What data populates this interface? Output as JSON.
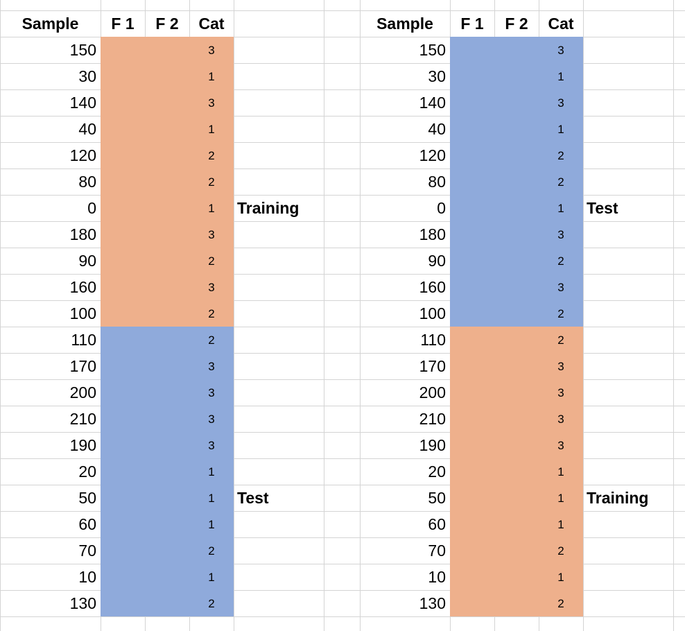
{
  "colors": {
    "training": "#eeb08c",
    "test": "#8faadb",
    "gridline": "#d4d4d4"
  },
  "headers": {
    "sample": "Sample",
    "f1": "F 1",
    "f2": "F 2",
    "cat": "Cat"
  },
  "tables": [
    {
      "first_group": {
        "label": "Training",
        "color": "training"
      },
      "second_group": {
        "label": "Test",
        "color": "test"
      },
      "rows": [
        {
          "sample": "150",
          "cat": "3"
        },
        {
          "sample": "30",
          "cat": "1"
        },
        {
          "sample": "140",
          "cat": "3"
        },
        {
          "sample": "40",
          "cat": "1"
        },
        {
          "sample": "120",
          "cat": "2"
        },
        {
          "sample": "80",
          "cat": "2"
        },
        {
          "sample": "0",
          "cat": "1"
        },
        {
          "sample": "180",
          "cat": "3"
        },
        {
          "sample": "90",
          "cat": "2"
        },
        {
          "sample": "160",
          "cat": "3"
        },
        {
          "sample": "100",
          "cat": "2"
        },
        {
          "sample": "110",
          "cat": "2"
        },
        {
          "sample": "170",
          "cat": "3"
        },
        {
          "sample": "200",
          "cat": "3"
        },
        {
          "sample": "210",
          "cat": "3"
        },
        {
          "sample": "190",
          "cat": "3"
        },
        {
          "sample": "20",
          "cat": "1"
        },
        {
          "sample": "50",
          "cat": "1"
        },
        {
          "sample": "60",
          "cat": "1"
        },
        {
          "sample": "70",
          "cat": "2"
        },
        {
          "sample": "10",
          "cat": "1"
        },
        {
          "sample": "130",
          "cat": "2"
        }
      ]
    },
    {
      "first_group": {
        "label": "Test",
        "color": "test"
      },
      "second_group": {
        "label": "Training",
        "color": "training"
      },
      "rows": [
        {
          "sample": "150",
          "cat": "3"
        },
        {
          "sample": "30",
          "cat": "1"
        },
        {
          "sample": "140",
          "cat": "3"
        },
        {
          "sample": "40",
          "cat": "1"
        },
        {
          "sample": "120",
          "cat": "2"
        },
        {
          "sample": "80",
          "cat": "2"
        },
        {
          "sample": "0",
          "cat": "1"
        },
        {
          "sample": "180",
          "cat": "3"
        },
        {
          "sample": "90",
          "cat": "2"
        },
        {
          "sample": "160",
          "cat": "3"
        },
        {
          "sample": "100",
          "cat": "2"
        },
        {
          "sample": "110",
          "cat": "2"
        },
        {
          "sample": "170",
          "cat": "3"
        },
        {
          "sample": "200",
          "cat": "3"
        },
        {
          "sample": "210",
          "cat": "3"
        },
        {
          "sample": "190",
          "cat": "3"
        },
        {
          "sample": "20",
          "cat": "1"
        },
        {
          "sample": "50",
          "cat": "1"
        },
        {
          "sample": "60",
          "cat": "1"
        },
        {
          "sample": "70",
          "cat": "2"
        },
        {
          "sample": "10",
          "cat": "1"
        },
        {
          "sample": "130",
          "cat": "2"
        }
      ]
    }
  ]
}
